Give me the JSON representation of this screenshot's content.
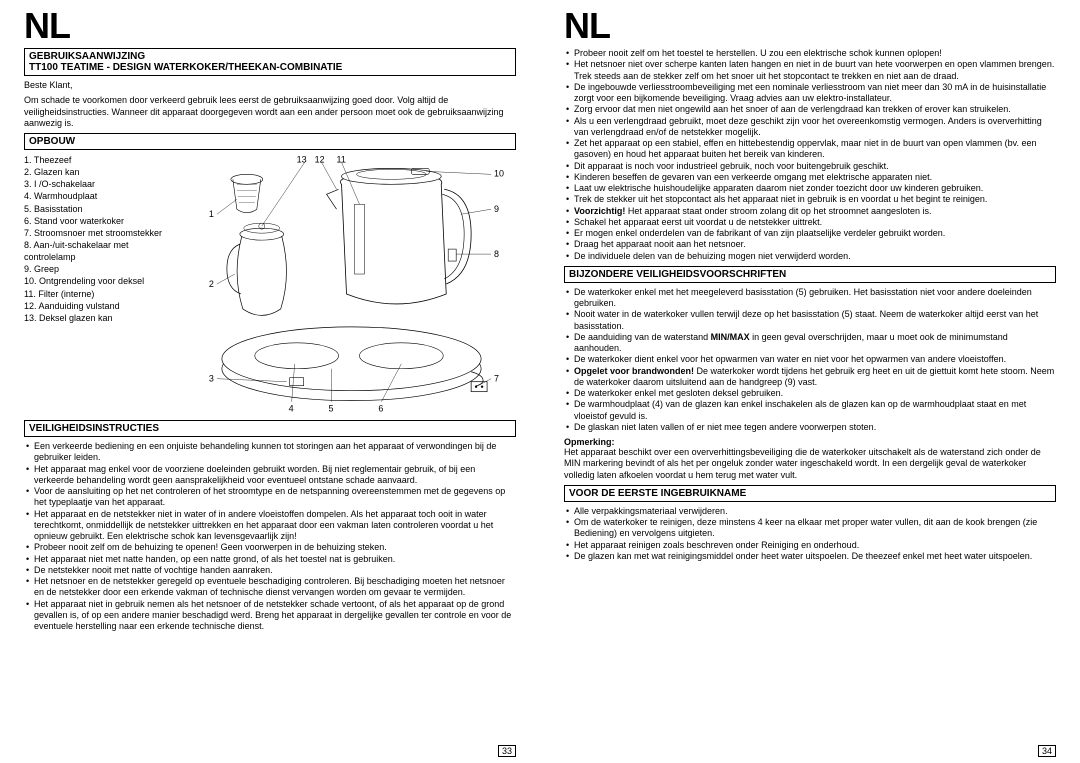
{
  "lang_header": "NL",
  "page_left_num": "33",
  "page_right_num": "34",
  "left": {
    "title_box": {
      "line1": "GEBRUIKSAANWIJZING",
      "line2": "TT100  TEATIME - DESIGN WATERKOKER/THEEKAN-COMBINATIE"
    },
    "greeting": "Beste Klant,",
    "intro": "Om schade te voorkomen door verkeerd gebruik lees eerst de gebruiksaanwijzing goed door. Volg altijd de veiligheidsinstructies. Wanneer dit apparaat doorgegeven wordt aan een ander persoon moet ook de gebruiksaanwijzing aanwezig is.",
    "opbouw_title": "OPBOUW",
    "parts": [
      "1. Theezeef",
      "2. Glazen kan",
      "3. I /O-schakelaar",
      "4. Warmhoudplaat",
      "5. Basisstation",
      "6. Stand voor waterkoker",
      "7. Stroomsnoer met stroomstekker",
      "8. Aan-/uit-schakelaar met",
      "    controlelamp",
      "9. Greep",
      "10. Ontgrendeling voor deksel",
      "11. Filter (interne)",
      "12. Aanduiding vulstand",
      "13. Deksel glazen kan"
    ],
    "diagram_labels": {
      "n1": "1",
      "n2": "2",
      "n3": "3",
      "n4": "4",
      "n5": "5",
      "n6": "6",
      "n7": "7",
      "n8": "8",
      "n9": "9",
      "n10": "10",
      "n11": "11",
      "n12": "12",
      "n13": "13"
    },
    "safety_title": "VEILIGHEIDSINSTRUCTIES",
    "safety_items": [
      "Een verkeerde bediening en een onjuiste behandeling kunnen tot storingen aan het apparaat of verwondingen bij de gebruiker leiden.",
      "Het apparaat mag enkel voor de voorziene doeleinden gebruikt worden.  Bij niet reglementair gebruik, of bij een verkeerde behandeling wordt geen aansprakelijkheid voor eventueel ontstane schade aanvaard.",
      "Voor de aansluiting op het net controleren of het stroomtype en de netspanning overeenstemmen met de gegevens op het typeplaatje van het apparaat.",
      "Het apparaat en de netstekker niet in water of in andere vloeistoffen dompelen.  Als het apparaat toch ooit in water terechtkomt, onmiddellijk de netstekker uittrekken en het apparaat door een vakman laten controleren voordat u het opnieuw gebruikt.  Een elektrische schok kan levensgevaarlijk zijn!",
      "Probeer nooit zelf om de behuizing te openen!  Geen voorwerpen in de behuizing steken.",
      "Het apparaat niet met natte handen, op een natte grond, of als het toestel nat is gebruiken.",
      "De netstekker nooit met natte of vochtige handen aanraken.",
      "Het netsnoer en de netstekker geregeld op eventuele beschadiging controleren.  Bij beschadiging moeten het netsnoer en de netstekker door een erkende vakman of technische dienst vervangen worden om gevaar te vermijden.",
      "Het apparaat niet in gebruik nemen als het netsnoer of de netstekker schade vertoont, of als het apparaat op de grond gevallen is, of op een andere manier beschadigd werd.  Breng het apparaat in dergelijke gevallen ter controle en voor de eventuele herstelling naar een erkende technische dienst."
    ]
  },
  "right": {
    "cont_items": [
      "Probeer nooit zelf om het toestel te herstellen. U zou een elektrische schok kunnen oplopen!",
      "Het netsnoer niet over scherpe kanten laten hangen en niet in de buurt van hete voorwerpen en open vlammen brengen. Trek steeds aan de stekker zelf om het snoer uit het stopcontact te trekken en niet aan de draad.",
      "De ingebouwde verliesstroombeveiliging met een nominale verliesstroom van niet meer dan 30 mA in de huisinstallatie zorgt voor een bijkomende beveiliging. Vraag advies aan uw elektro-installateur.",
      "Zorg ervoor dat men niet ongewild aan het snoer of aan de verlengdraad kan trekken of erover kan struikelen.",
      "Als u een verlengdraad gebruikt, moet deze geschikt zijn voor het overeenkomstig vermogen. Anders is oververhitting van verlengdraad en/of de netstekker mogelijk.",
      "Zet het apparaat op een stabiel, effen en hittebestendig oppervlak, maar niet in de buurt van open vlammen (bv. een gasoven) en houd het apparaat buiten het bereik van kinderen.",
      "Dit apparaat is noch voor industrieel gebruik, noch voor buitengebruik geschikt.",
      "Kinderen beseffen de gevaren van een verkeerde omgang met elektrische apparaten niet.",
      "Laat uw elektrische huishoudelijke apparaten daarom niet zonder toezicht door uw kinderen gebruiken.",
      "Trek de stekker uit het stopcontact als het apparaat niet in gebruik is en voordat u het begint te reinigen.",
      "<b>Voorzichtig!</b> Het apparaat staat onder stroom zolang dit op het stroomnet aangesloten is.",
      "Schakel het apparaat eerst uit voordat u de netstekker uittrekt.",
      "Er mogen enkel onderdelen van de fabrikant of van zijn plaatselijke verdeler gebruikt worden.",
      "Draag het apparaat nooit aan het netsnoer.",
      "De individuele delen van de behuizing mogen niet verwijderd worden."
    ],
    "special_title": "BIJZONDERE VEILIGHEIDSVOORSCHRIFTEN",
    "special_items": [
      "De waterkoker enkel met het meegeleverd basisstation (5) gebruiken. Het basisstation niet voor andere doeleinden gebruiken.",
      "Nooit water in de waterkoker vullen terwijl deze op het basisstation (5) staat. Neem de waterkoker altijd eerst van het basisstation.",
      "De aanduiding van de waterstand <b>MIN/MAX</b> in geen geval overschrijden, maar u moet ook de minimumstand aanhouden.",
      "De waterkoker dient enkel voor het opwarmen van water en niet voor het opwarmen van andere vloeistoffen.",
      "<b>Opgelet voor brandwonden!</b> De waterkoker wordt tijdens het gebruik erg heet en uit de giettuit komt hete stoom. Neem de waterkoker daarom uitsluitend aan de handgreep (9) vast.",
      "De waterkoker enkel met gesloten deksel gebruiken.",
      "De warmhoudplaat (4) van de glazen kan enkel inschakelen als de glazen kan op de warmhoudplaat staat en met vloeistof gevuld is.",
      "De glaskan niet laten vallen of er niet mee tegen andere voorwerpen stoten."
    ],
    "note_label": "Opmerking:",
    "note_text": "Het apparaat beschikt over een oververhittingsbeveiliging die de waterkoker uitschakelt als de waterstand zich onder de MIN markering bevindt of als het per ongeluk zonder water ingeschakeld wordt. In een dergelijk geval de waterkoker volledig laten afkoelen voordat u hem terug met water vult.",
    "firstuse_title": "VOOR DE EERSTE INGEBRUIKNAME",
    "firstuse_items": [
      "Alle verpakkingsmateriaal verwijderen.",
      "Om de waterkoker te reinigen, deze minstens 4 keer na elkaar met proper water vullen, dit aan de kook brengen (zie Bediening) en vervolgens uitgieten.",
      "Het apparaat reinigen zoals beschreven onder Reiniging en onderhoud.",
      "De glazen kan met wat reinigingsmiddel onder heet water uitspoelen. De theezeef enkel met heet water uitspoelen."
    ]
  },
  "colors": {
    "text": "#000000",
    "bg": "#ffffff",
    "line": "#000000"
  }
}
